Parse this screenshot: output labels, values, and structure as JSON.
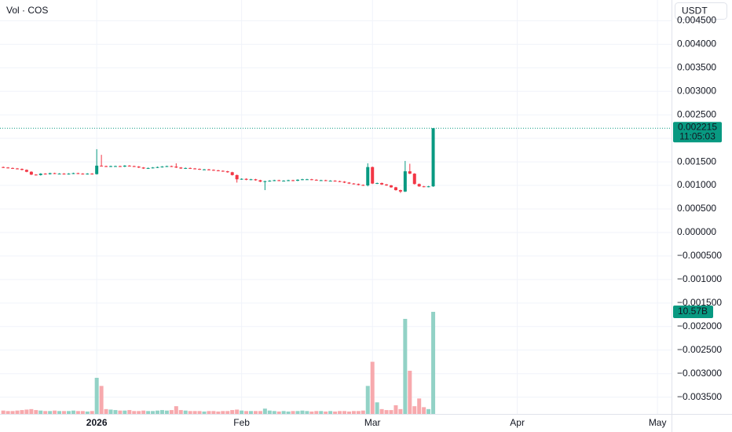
{
  "chart_data": {
    "type": "candlestick",
    "legend_title": "Vol · COS",
    "currency_button": "USDT",
    "countdown": "11:05:03",
    "last_price": {
      "value": 0.002215,
      "label": "0.002215"
    },
    "last_volume": {
      "value": 10.57,
      "label": "10.57B"
    },
    "up_color": "#089981",
    "down_color": "#f23645",
    "up_volume_color": "#92d2c6",
    "down_volume_color": "#f7a9ad",
    "grid": true,
    "xlim": [
      -20.7,
      123
    ],
    "xticks": [
      {
        "value": 0,
        "label": "2026"
      },
      {
        "value": 31,
        "label": "Feb"
      },
      {
        "value": 59,
        "label": "Mar"
      },
      {
        "value": 90,
        "label": "Apr"
      },
      {
        "value": 120,
        "label": "May"
      }
    ],
    "ylim": [
      -0.003856,
      0.00494
    ],
    "yticks": [
      {
        "value": 0.0045,
        "label": "0.004500"
      },
      {
        "value": 0.004,
        "label": "0.004000"
      },
      {
        "value": 0.0035,
        "label": "0.003500"
      },
      {
        "value": 0.003,
        "label": "0.003000"
      },
      {
        "value": 0.0025,
        "label": "0.002500"
      },
      {
        "value": 0.002,
        "label": "0.002000"
      },
      {
        "value": 0.0015,
        "label": "0.001500"
      },
      {
        "value": 0.001,
        "label": "0.001000"
      },
      {
        "value": 0.0005,
        "label": "0.000500"
      },
      {
        "value": 0,
        "label": "0.000000"
      },
      {
        "value": -0.0005,
        "label": "−0.000500"
      },
      {
        "value": -0.001,
        "label": "−0.001000"
      },
      {
        "value": -0.0015,
        "label": "−0.001500"
      },
      {
        "value": -0.002,
        "label": "−0.002000"
      },
      {
        "value": -0.0025,
        "label": "−0.002500"
      },
      {
        "value": -0.003,
        "label": "−0.003000"
      },
      {
        "value": -0.0035,
        "label": "−0.003500"
      }
    ],
    "x": [
      -20,
      -19,
      -18,
      -17,
      -16,
      -15,
      -14,
      -13,
      -12,
      -11,
      -10,
      -9,
      -8,
      -7,
      -6,
      -5,
      -4,
      -3,
      -2,
      -1,
      0,
      1,
      2,
      3,
      4,
      5,
      6,
      7,
      8,
      9,
      10,
      11,
      12,
      13,
      14,
      15,
      16,
      17,
      18,
      19,
      20,
      21,
      22,
      23,
      24,
      25,
      26,
      27,
      28,
      29,
      30,
      31,
      32,
      33,
      34,
      35,
      36,
      37,
      38,
      39,
      40,
      41,
      42,
      43,
      44,
      45,
      46,
      47,
      48,
      49,
      50,
      51,
      52,
      53,
      54,
      55,
      56,
      57,
      58,
      59,
      60,
      61,
      62,
      63,
      64,
      65,
      66,
      67,
      68,
      69,
      70,
      71,
      72
    ],
    "open": [
      0.00139,
      0.00138,
      0.00137,
      0.00136,
      0.00135,
      0.00133,
      0.00129,
      0.00123,
      0.00122,
      0.00125,
      0.00124,
      0.00126,
      0.00125,
      0.00125,
      0.00124,
      0.00125,
      0.00126,
      0.00125,
      0.00124,
      0.00125,
      0.00124,
      0.00142,
      0.00141,
      0.0014,
      0.00141,
      0.00141,
      0.0014,
      0.00142,
      0.00141,
      0.0014,
      0.00138,
      0.00136,
      0.00137,
      0.00138,
      0.00139,
      0.0014,
      0.00141,
      0.0014,
      0.00138,
      0.00136,
      0.00137,
      0.00136,
      0.00135,
      0.00134,
      0.00134,
      0.00133,
      0.00132,
      0.00131,
      0.0013,
      0.00128,
      0.00122,
      0.00113,
      0.00114,
      0.00112,
      0.00113,
      0.00111,
      0.00108,
      0.00109,
      0.0011,
      0.00111,
      0.0011,
      0.0011,
      0.00111,
      0.0011,
      0.00112,
      0.00113,
      0.00113,
      0.00112,
      0.00111,
      0.00111,
      0.0011,
      0.0011,
      0.00109,
      0.00108,
      0.00106,
      0.00104,
      0.00103,
      0.00101,
      0.001,
      0.00139,
      0.00104,
      0.00105,
      0.00102,
      0.001,
      0.00096,
      0.0009,
      0.00087,
      0.0013,
      0.00125,
      0.00103,
      0.00098,
      0.00097,
      0.00098
    ],
    "high": [
      0.0014,
      0.00139,
      0.00138,
      0.00137,
      0.00136,
      0.00134,
      0.0013,
      0.00124,
      0.00126,
      0.00126,
      0.00127,
      0.00127,
      0.00126,
      0.00126,
      0.00126,
      0.00127,
      0.00127,
      0.00126,
      0.00126,
      0.00126,
      0.00177,
      0.00165,
      0.00142,
      0.00142,
      0.00142,
      0.00142,
      0.00143,
      0.00143,
      0.00142,
      0.00141,
      0.00139,
      0.00138,
      0.00139,
      0.0014,
      0.00141,
      0.00142,
      0.00142,
      0.00147,
      0.00139,
      0.00138,
      0.00138,
      0.00137,
      0.00136,
      0.00135,
      0.00135,
      0.00134,
      0.00133,
      0.00132,
      0.00131,
      0.00129,
      0.00123,
      0.00115,
      0.00115,
      0.00114,
      0.00114,
      0.00112,
      0.0011,
      0.00111,
      0.00112,
      0.00112,
      0.00111,
      0.00112,
      0.00112,
      0.00113,
      0.00114,
      0.00114,
      0.00114,
      0.00113,
      0.00112,
      0.00112,
      0.00111,
      0.00111,
      0.0011,
      0.00109,
      0.00107,
      0.00105,
      0.00104,
      0.00102,
      0.00147,
      0.0014,
      0.00106,
      0.00106,
      0.00103,
      0.00101,
      0.00097,
      0.00091,
      0.00152,
      0.00146,
      0.00126,
      0.00104,
      0.00099,
      0.00099,
      0.002215
    ],
    "low": [
      0.00137,
      0.00136,
      0.00135,
      0.00134,
      0.00132,
      0.00128,
      0.00122,
      0.00121,
      0.00121,
      0.00123,
      0.00123,
      0.00124,
      0.00124,
      0.00123,
      0.00123,
      0.00124,
      0.00124,
      0.00123,
      0.00123,
      0.00123,
      0.00123,
      0.0014,
      0.00139,
      0.00139,
      0.0014,
      0.00139,
      0.00139,
      0.0014,
      0.00139,
      0.00137,
      0.00135,
      0.00135,
      0.00136,
      0.00137,
      0.00138,
      0.00139,
      0.00139,
      0.00137,
      0.00135,
      0.00135,
      0.00135,
      0.00134,
      0.00133,
      0.00133,
      0.00132,
      0.00131,
      0.0013,
      0.00129,
      0.00127,
      0.00121,
      0.00106,
      0.00112,
      0.00111,
      0.00111,
      0.0011,
      0.00107,
      0.0009,
      0.00108,
      0.00109,
      0.00109,
      0.00109,
      0.00109,
      0.00109,
      0.00109,
      0.00111,
      0.00112,
      0.00111,
      0.0011,
      0.0011,
      0.00109,
      0.00109,
      0.00108,
      0.00107,
      0.00105,
      0.00103,
      0.00102,
      0.001,
      0.00099,
      0.00098,
      0.00103,
      0.00103,
      0.00101,
      0.00099,
      0.00095,
      0.00089,
      0.00084,
      0.00086,
      0.00124,
      0.00102,
      0.00097,
      0.00096,
      0.00096,
      0.00097
    ],
    "close": [
      0.00138,
      0.00137,
      0.00136,
      0.00135,
      0.00133,
      0.00129,
      0.00123,
      0.00122,
      0.00125,
      0.00124,
      0.00126,
      0.00125,
      0.00125,
      0.00124,
      0.00125,
      0.00126,
      0.00125,
      0.00124,
      0.00125,
      0.00124,
      0.00142,
      0.00141,
      0.0014,
      0.00141,
      0.00141,
      0.0014,
      0.00142,
      0.00141,
      0.0014,
      0.00138,
      0.00136,
      0.00137,
      0.00138,
      0.00139,
      0.0014,
      0.00141,
      0.0014,
      0.00138,
      0.00136,
      0.00137,
      0.00136,
      0.00135,
      0.00134,
      0.00134,
      0.00133,
      0.00132,
      0.00131,
      0.0013,
      0.00128,
      0.00122,
      0.00113,
      0.00114,
      0.00112,
      0.00113,
      0.00111,
      0.00108,
      0.00109,
      0.0011,
      0.00111,
      0.0011,
      0.0011,
      0.00111,
      0.0011,
      0.00112,
      0.00113,
      0.00113,
      0.00112,
      0.00111,
      0.00111,
      0.0011,
      0.0011,
      0.00109,
      0.00108,
      0.00106,
      0.00104,
      0.00103,
      0.00101,
      0.001,
      0.00139,
      0.00104,
      0.00105,
      0.00102,
      0.001,
      0.00096,
      0.0009,
      0.00087,
      0.0013,
      0.00125,
      0.00103,
      0.00098,
      0.00097,
      0.00098,
      0.002215
    ],
    "volume": [
      0.35,
      0.3,
      0.3,
      0.35,
      0.4,
      0.45,
      0.5,
      0.4,
      0.35,
      0.3,
      0.3,
      0.35,
      0.3,
      0.3,
      0.3,
      0.35,
      0.3,
      0.3,
      0.25,
      0.3,
      3.74,
      2.9,
      0.5,
      0.45,
      0.4,
      0.35,
      0.35,
      0.4,
      0.3,
      0.3,
      0.35,
      0.3,
      0.3,
      0.35,
      0.4,
      0.35,
      0.4,
      0.8,
      0.4,
      0.35,
      0.3,
      0.3,
      0.3,
      0.25,
      0.3,
      0.3,
      0.25,
      0.3,
      0.3,
      0.4,
      0.45,
      0.35,
      0.3,
      0.3,
      0.3,
      0.3,
      0.55,
      0.35,
      0.3,
      0.25,
      0.3,
      0.25,
      0.3,
      0.3,
      0.35,
      0.3,
      0.25,
      0.3,
      0.3,
      0.25,
      0.3,
      0.25,
      0.3,
      0.3,
      0.25,
      0.3,
      0.3,
      0.35,
      2.9,
      5.4,
      1.2,
      0.5,
      0.4,
      0.4,
      0.9,
      0.5,
      9.84,
      4.47,
      0.8,
      1.6,
      0.7,
      0.5,
      10.57
    ]
  }
}
